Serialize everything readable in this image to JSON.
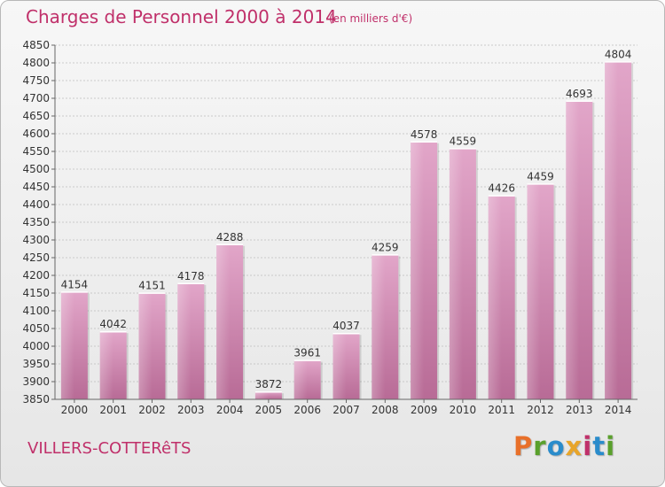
{
  "header": {
    "title": "Charges de Personnel 2000 à 2014",
    "subtitle": "(en milliers d'€)"
  },
  "footer": {
    "place": "VILLERS-COTTERêTS",
    "logo": "Proxiti"
  },
  "colors": {
    "bar": "#d98fb8",
    "bar_shade": "#b8638f",
    "text_accent": "#c0306a",
    "grid": "#bdbdbd",
    "logo_letters": [
      "#e8702a",
      "#5aa02c",
      "#2a8ccb",
      "#e8a52a",
      "#c0306a",
      "#2a8ccb",
      "#5aa02c"
    ]
  },
  "chart_data": {
    "type": "bar",
    "categories": [
      "2000",
      "2001",
      "2002",
      "2003",
      "2004",
      "2005",
      "2006",
      "2007",
      "2008",
      "2009",
      "2010",
      "2011",
      "2012",
      "2013",
      "2014"
    ],
    "values": [
      4154,
      4042,
      4151,
      4178,
      4288,
      3872,
      3961,
      4037,
      4259,
      4578,
      4559,
      4426,
      4459,
      4693,
      4804
    ],
    "ylim": [
      3850,
      4850
    ],
    "ytick_step": 50,
    "grid": true,
    "legend": "none",
    "data_labels": true
  }
}
